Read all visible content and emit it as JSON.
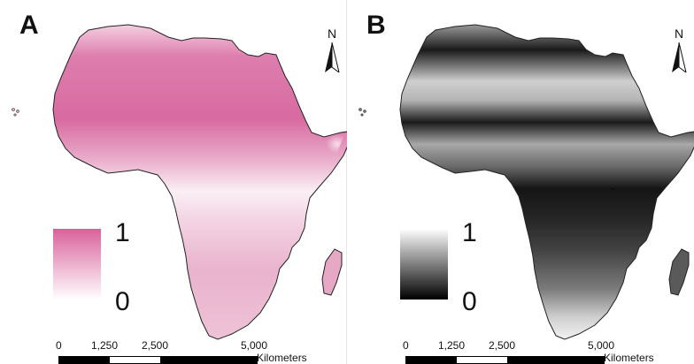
{
  "panels": [
    {
      "letter": "A",
      "north_label": "N",
      "legend": {
        "max_label": "1",
        "min_label": "0",
        "color_high": "#d9619b",
        "color_low": "#ffffff"
      },
      "scale_bar": {
        "ticks": [
          "0",
          "1,250",
          "2,500",
          "5,000"
        ],
        "unit": "Kilometers"
      }
    },
    {
      "letter": "B",
      "north_label": "N",
      "legend": {
        "max_label": "1",
        "min_label": "0",
        "color_high": "#ffffff",
        "color_low": "#000000"
      },
      "scale_bar": {
        "ticks": [
          "0",
          "1,250",
          "2,500",
          "5,000"
        ],
        "unit": "Kilometers"
      }
    }
  ]
}
